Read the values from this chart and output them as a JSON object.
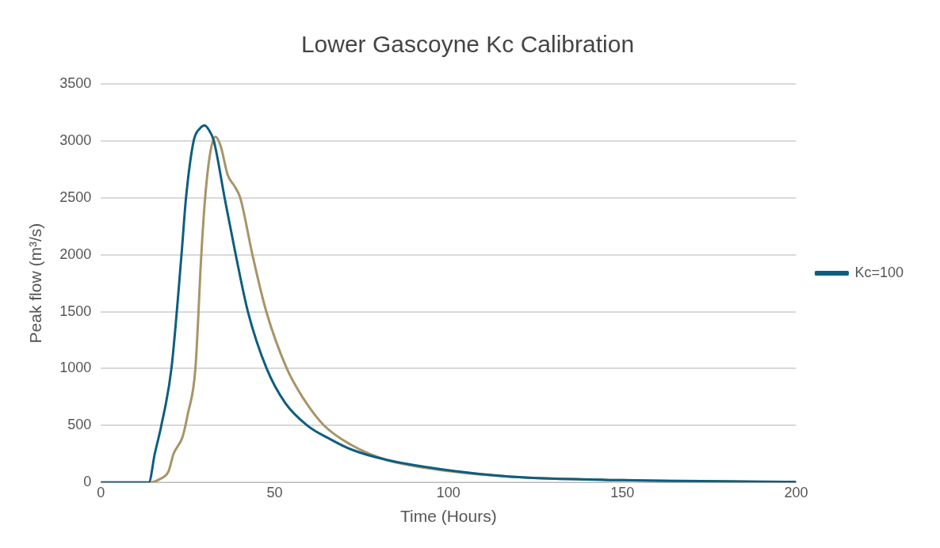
{
  "chart_data": {
    "type": "line",
    "title": "Lower Gascoyne Kc Calibration",
    "xlabel": "Time (Hours)",
    "ylabel": "Peak flow (m³/s)",
    "xlim": [
      0,
      200
    ],
    "xticks": [
      0,
      50,
      100,
      150,
      200
    ],
    "ylim": [
      0,
      3500
    ],
    "yticks": [
      0,
      500,
      1000,
      1500,
      2000,
      2500,
      3000,
      3500
    ],
    "grid": "y",
    "legend": "right",
    "marker": "none",
    "line_style": "solid",
    "series": [
      {
        "color": "#a89468",
        "x": [
          0,
          14.2,
          17,
          19.5,
          20.9,
          23.5,
          25,
          27.2,
          28.9,
          30,
          31.5,
          33,
          34.5,
          36.5,
          38.5,
          40.1,
          43.6,
          47.6,
          53.5,
          58,
          64.2,
          72,
          82,
          100,
          118,
          150,
          200
        ],
        "values": [
          0,
          0,
          30,
          100,
          250,
          400,
          600,
          1000,
          2000,
          2500,
          2900,
          3035,
          2950,
          2700,
          2600,
          2500,
          2000,
          1500,
          1000,
          750,
          500,
          330,
          200,
          100,
          50,
          20,
          5
        ]
      },
      {
        "name": "Kc=100",
        "color": "#0e5e7f",
        "x": [
          0,
          13.8,
          15.5,
          17.4,
          20.3,
          23.2,
          24.5,
          26.7,
          28.5,
          29.9,
          31,
          32.5,
          35.6,
          38.8,
          42.3,
          47.7,
          53,
          59.4,
          66,
          72,
          82,
          101.6,
          118,
          150,
          200
        ],
        "values": [
          0,
          0,
          250,
          500,
          1000,
          2000,
          2500,
          3000,
          3110,
          3135,
          3100,
          3000,
          2500,
          2000,
          1500,
          1000,
          700,
          500,
          380,
          290,
          200,
          100,
          50,
          20,
          5
        ]
      }
    ]
  }
}
